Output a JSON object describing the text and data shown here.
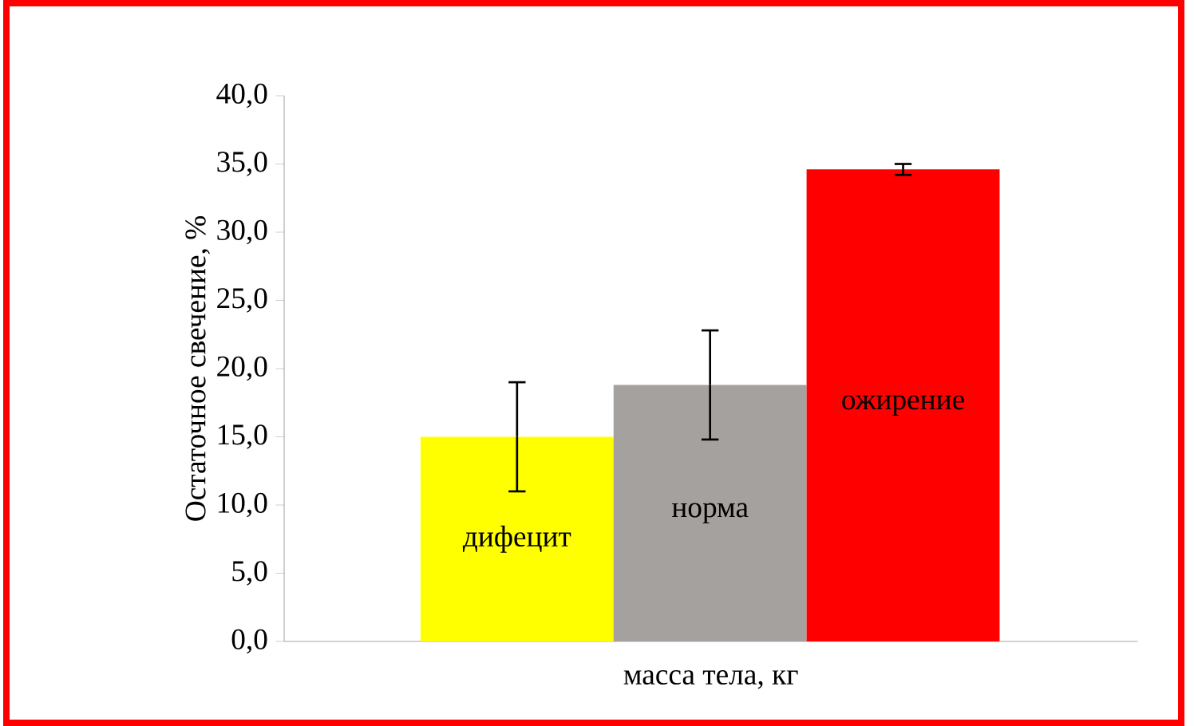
{
  "chart_data": {
    "type": "bar",
    "xlabel": "масса тела, кг",
    "ylabel": "Остаточное свечение, %",
    "categories": [
      "дифецит",
      "норма",
      "ожирение"
    ],
    "values": [
      15.0,
      18.8,
      34.6
    ],
    "errors": [
      4.0,
      4.0,
      0.4
    ],
    "colors": [
      "#ffff00",
      "#a5a19f",
      "#ff0000"
    ],
    "ylim": [
      0,
      40
    ],
    "yticks": [
      {
        "value": 0,
        "label": "0,0"
      },
      {
        "value": 5,
        "label": "5,0"
      },
      {
        "value": 10,
        "label": "10,0"
      },
      {
        "value": 15,
        "label": "15,0"
      },
      {
        "value": 20,
        "label": "20,0"
      },
      {
        "value": 25,
        "label": "25,0"
      },
      {
        "value": 30,
        "label": "30,0"
      },
      {
        "value": 35,
        "label": "35,0"
      },
      {
        "value": 40,
        "label": "40,0"
      }
    ]
  }
}
